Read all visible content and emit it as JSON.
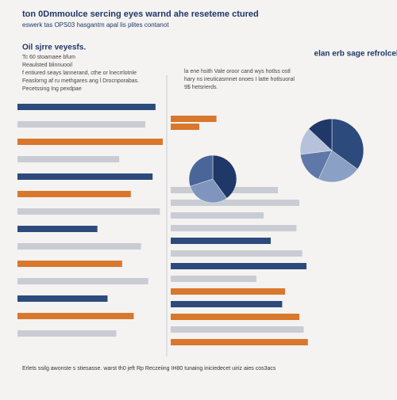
{
  "header": {
    "title": "ton 0Dmmoulce sercing eyes warnd ahe reseteme ctured",
    "subtitle": "eswerk tas OPS03 hasgantm apal lis plites contanot"
  },
  "chart_data": [
    {
      "type": "bar",
      "title": "Oil sjrre veyesfs.",
      "notes": [
        "Tc 60 stoamaee bfum",
        "Reaulsted blinnuooil",
        "f entiured seays lannerand, cthe or lnecrrlotnle",
        "Feaslorng af ru methgares ang l Drocnporabas.",
        "Pecetssing Ing pexdpae"
      ],
      "xlim": [
        0,
        100
      ],
      "values": [
        95,
        88,
        100,
        70,
        93,
        78,
        98,
        55,
        85,
        72,
        90,
        62,
        80,
        68
      ],
      "colors": [
        "#2d4a7c",
        "#c9ccd3",
        "#d9772c",
        "#c9ccd3",
        "#2d4a7c",
        "#d9772c",
        "#c9ccd3",
        "#2d4a7c",
        "#c9ccd3",
        "#d9772c",
        "#c9ccd3",
        "#2d4a7c",
        "#d9772c",
        "#c9ccd3"
      ]
    },
    {
      "type": "bar",
      "title": "elan erb sage refrolcel.",
      "notes": [
        "la ene hsith Vale oroor cand wys hotlss ostl",
        "hary ns ireuticasmnet onoes I latte hotlsuoral",
        "9$ hetsrierds."
      ],
      "xlim": [
        0,
        100
      ],
      "values": [
        32,
        20,
        75,
        90,
        65,
        88,
        70,
        92,
        95,
        60,
        80,
        78,
        90,
        93,
        96
      ],
      "colors": [
        "#d9772c",
        "#d9772c",
        "#c9ccd3",
        "#c9ccd3",
        "#c9ccd3",
        "#c9ccd3",
        "#2d4a7c",
        "#c9ccd3",
        "#2d4a7c",
        "#c9ccd3",
        "#d9772c",
        "#2d4a7c",
        "#d9772c",
        "#c9ccd3",
        "#d9772c"
      ]
    },
    {
      "type": "pie",
      "values": [
        35,
        22,
        16,
        14,
        13
      ],
      "colors": [
        "#2d4a7c",
        "#8aa0c4",
        "#5e79a8",
        "#b5c2da",
        "#1f3868"
      ]
    },
    {
      "type": "pie",
      "values": [
        40,
        30,
        30
      ],
      "colors": [
        "#1f3868",
        "#7f95bd",
        "#4a6698"
      ]
    }
  ],
  "footer": "Erlets ssilg awonste s stiesasse. warst th0 jeft Rp Reczeiing IH80 tunaing iniciedecet uiriz aies cos3acs"
}
